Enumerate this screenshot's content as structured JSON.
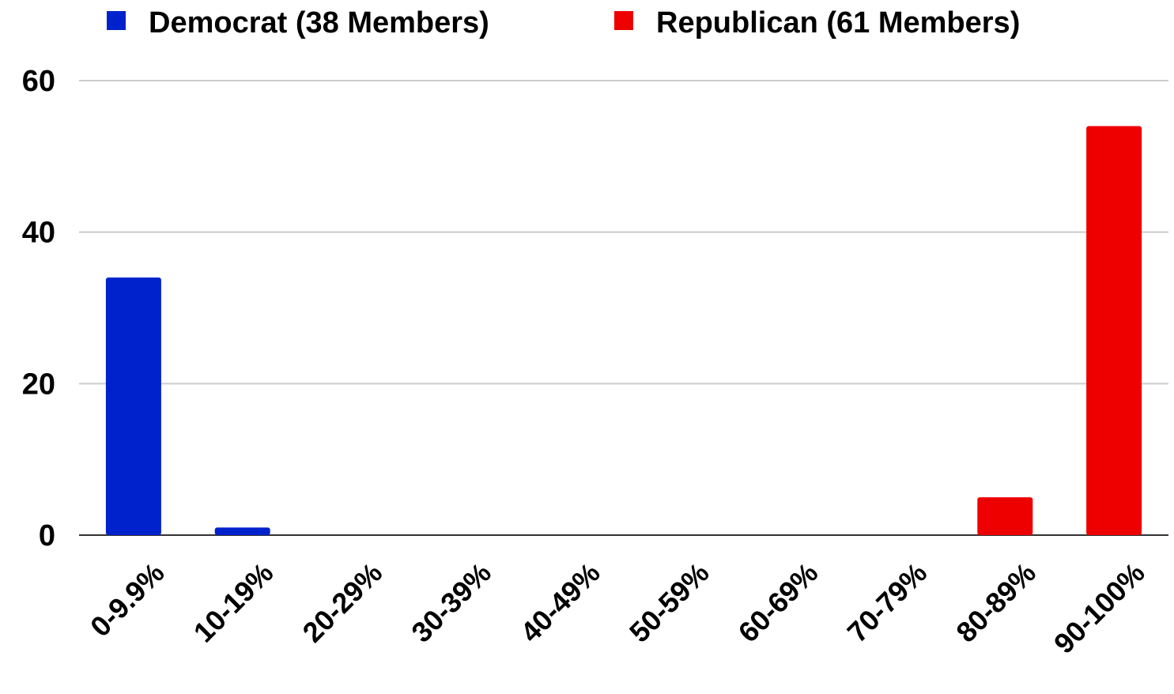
{
  "chart_data": {
    "type": "bar",
    "title": "",
    "xlabel": "",
    "ylabel": "",
    "categories": [
      "0-9.9%",
      "10-19%",
      "20-29%",
      "30-39%",
      "40-49%",
      "50-59%",
      "60-69%",
      "70-79%",
      "80-89%",
      "90-100%"
    ],
    "series": [
      {
        "name": "Democrat (38 Members)",
        "color": "#0022cc",
        "values": [
          34,
          1,
          0,
          0,
          0,
          0,
          0,
          0,
          0,
          0
        ]
      },
      {
        "name": "Republican (61 Members)",
        "color": "#ee0000",
        "values": [
          0,
          0,
          0,
          0,
          0,
          0,
          0,
          0,
          5,
          54
        ]
      }
    ],
    "ylim": [
      0,
      60
    ],
    "yticks": [
      "0",
      "20",
      "40",
      "60"
    ],
    "grid": true,
    "legend_position": "top"
  }
}
